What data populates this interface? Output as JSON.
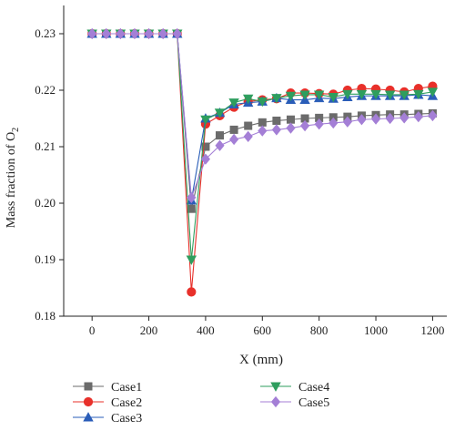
{
  "chart_data": {
    "type": "line",
    "xlabel": "X (mm)",
    "ylabel_main": "Mass fraction of O",
    "ylabel_sub": "2",
    "xlim": [
      -100,
      1250
    ],
    "ylim": [
      0.18,
      0.235
    ],
    "xticks": [
      0,
      200,
      400,
      600,
      800,
      1000,
      1200
    ],
    "xtick_labels": [
      "0",
      "200",
      "400",
      "600",
      "800",
      "1000",
      "1200"
    ],
    "yticks": [
      0.18,
      0.19,
      0.2,
      0.21,
      0.22,
      0.23
    ],
    "ytick_labels": [
      "0.18",
      "0.19",
      "0.20",
      "0.21",
      "0.22",
      "0.23"
    ],
    "grid": false,
    "legend_position": "bottom",
    "x": [
      0,
      50,
      100,
      150,
      200,
      250,
      300,
      350,
      400,
      450,
      500,
      550,
      600,
      650,
      700,
      750,
      800,
      850,
      900,
      950,
      1000,
      1050,
      1100,
      1150,
      1200
    ],
    "series": [
      {
        "name": "Case1",
        "color": "#6b6b6b",
        "marker": "square",
        "values": [
          0.23,
          0.23,
          0.23,
          0.23,
          0.23,
          0.23,
          0.23,
          0.199,
          0.21,
          0.212,
          0.213,
          0.2137,
          0.2143,
          0.2146,
          0.2148,
          0.215,
          0.2151,
          0.2152,
          0.2153,
          0.2155,
          0.2156,
          0.2157,
          0.2157,
          0.2158,
          0.2159
        ]
      },
      {
        "name": "Case2",
        "color": "#e8302a",
        "marker": "circle",
        "values": [
          0.23,
          0.23,
          0.23,
          0.23,
          0.23,
          0.23,
          0.23,
          0.1843,
          0.214,
          0.2155,
          0.217,
          0.218,
          0.2183,
          0.2185,
          0.2195,
          0.2195,
          0.2194,
          0.2193,
          0.22,
          0.2203,
          0.2202,
          0.22,
          0.2197,
          0.2203,
          0.2207
        ]
      },
      {
        "name": "Case3",
        "color": "#2a5db8",
        "marker": "triangle-up",
        "values": [
          0.23,
          0.23,
          0.23,
          0.23,
          0.23,
          0.23,
          0.23,
          0.2005,
          0.215,
          0.216,
          0.2175,
          0.2178,
          0.218,
          0.2186,
          0.2183,
          0.2183,
          0.2186,
          0.2185,
          0.2188,
          0.219,
          0.219,
          0.219,
          0.219,
          0.2192,
          0.219
        ]
      },
      {
        "name": "Case4",
        "color": "#2e9e5e",
        "marker": "triangle-down",
        "values": [
          0.23,
          0.23,
          0.23,
          0.23,
          0.23,
          0.23,
          0.23,
          0.19,
          0.2148,
          0.216,
          0.2178,
          0.2185,
          0.218,
          0.2186,
          0.219,
          0.2192,
          0.2192,
          0.2188,
          0.2193,
          0.2193,
          0.2193,
          0.2192,
          0.2192,
          0.2193,
          0.2197
        ]
      },
      {
        "name": "Case5",
        "color": "#a47fd6",
        "marker": "diamond",
        "values": [
          0.23,
          0.23,
          0.23,
          0.23,
          0.23,
          0.23,
          0.23,
          0.201,
          0.2078,
          0.2102,
          0.2113,
          0.2118,
          0.2128,
          0.213,
          0.2133,
          0.2137,
          0.214,
          0.2142,
          0.2144,
          0.2148,
          0.2149,
          0.215,
          0.2151,
          0.2153,
          0.2155
        ]
      }
    ]
  }
}
